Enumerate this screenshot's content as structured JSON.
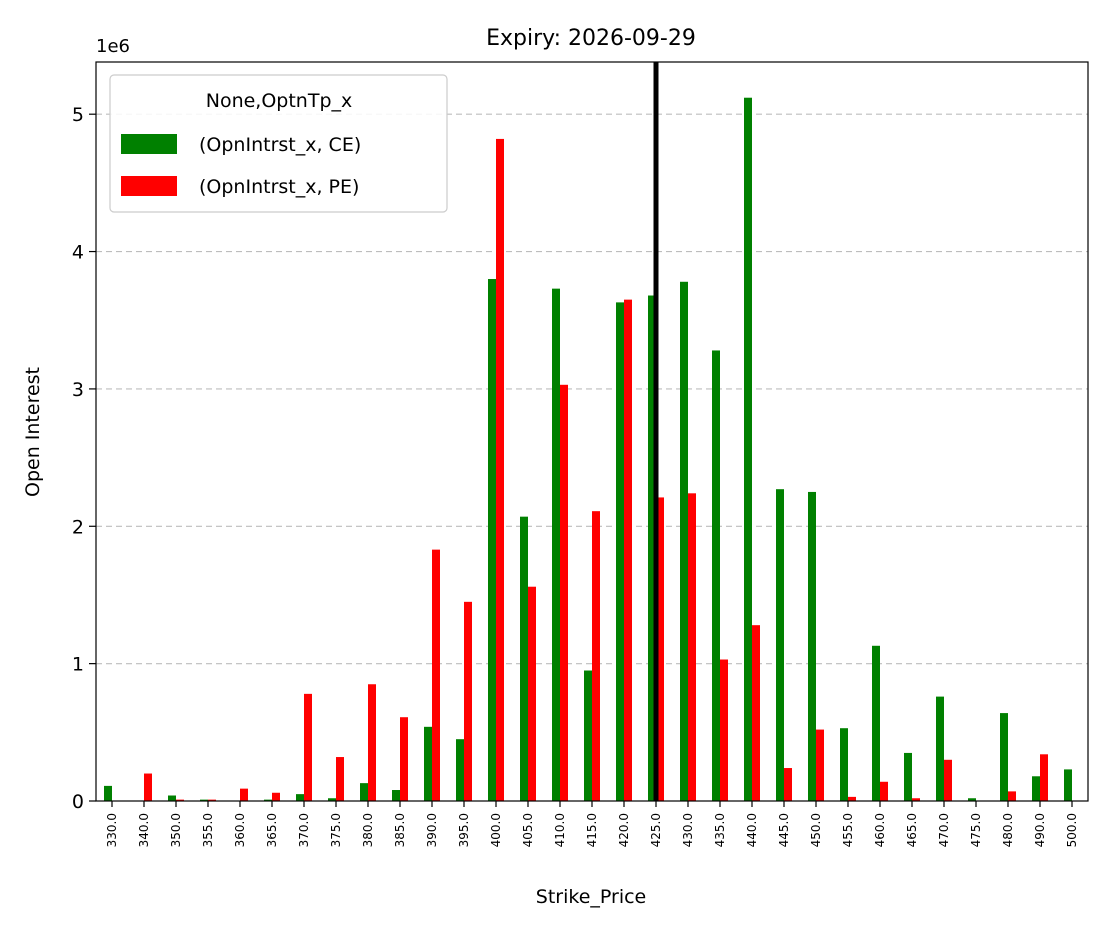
{
  "chart_data": {
    "type": "bar",
    "title": "Expiry: 2026-09-29",
    "xlabel": "Strike_Price",
    "ylabel": "Open Interest",
    "y_offset_label": "1e6",
    "y_scale": 1000000,
    "ylim": [
      0,
      5.38
    ],
    "yticks": [
      0,
      1,
      2,
      3,
      4,
      5
    ],
    "grid": "y-dashed",
    "legend": {
      "title": "None,OptnTp_x",
      "placement": "top-left"
    },
    "categories": [
      "330.0",
      "340.0",
      "350.0",
      "355.0",
      "360.0",
      "365.0",
      "370.0",
      "375.0",
      "380.0",
      "385.0",
      "390.0",
      "395.0",
      "400.0",
      "405.0",
      "410.0",
      "415.0",
      "420.0",
      "425.0",
      "430.0",
      "435.0",
      "440.0",
      "445.0",
      "450.0",
      "455.0",
      "460.0",
      "465.0",
      "470.0",
      "475.0",
      "480.0",
      "490.0",
      "500.0"
    ],
    "series": [
      {
        "name": "(OpnIntrst_x, CE)",
        "color": "#008000",
        "values": [
          0.11,
          0,
          0.04,
          0.01,
          0,
          0.01,
          0.05,
          0.02,
          0.13,
          0.08,
          0.54,
          0.45,
          3.8,
          2.07,
          3.73,
          0.95,
          3.63,
          3.68,
          3.78,
          3.28,
          5.12,
          2.27,
          2.25,
          0.53,
          1.13,
          0.35,
          0.76,
          0.02,
          0.64,
          0.18,
          0.23
        ]
      },
      {
        "name": "(OpnIntrst_x, PE)",
        "color": "#ff0000",
        "values": [
          0,
          0.2,
          0.01,
          0.01,
          0.09,
          0.06,
          0.78,
          0.32,
          0.85,
          0.61,
          1.83,
          1.45,
          4.82,
          1.56,
          3.03,
          2.11,
          3.65,
          2.21,
          2.24,
          1.03,
          1.28,
          0.24,
          0.52,
          0.03,
          0.14,
          0.02,
          0.3,
          0,
          0.07,
          0.34,
          0
        ]
      }
    ],
    "annotations": [
      {
        "type": "vline",
        "at_category": "425.0",
        "color": "#000000"
      }
    ]
  }
}
